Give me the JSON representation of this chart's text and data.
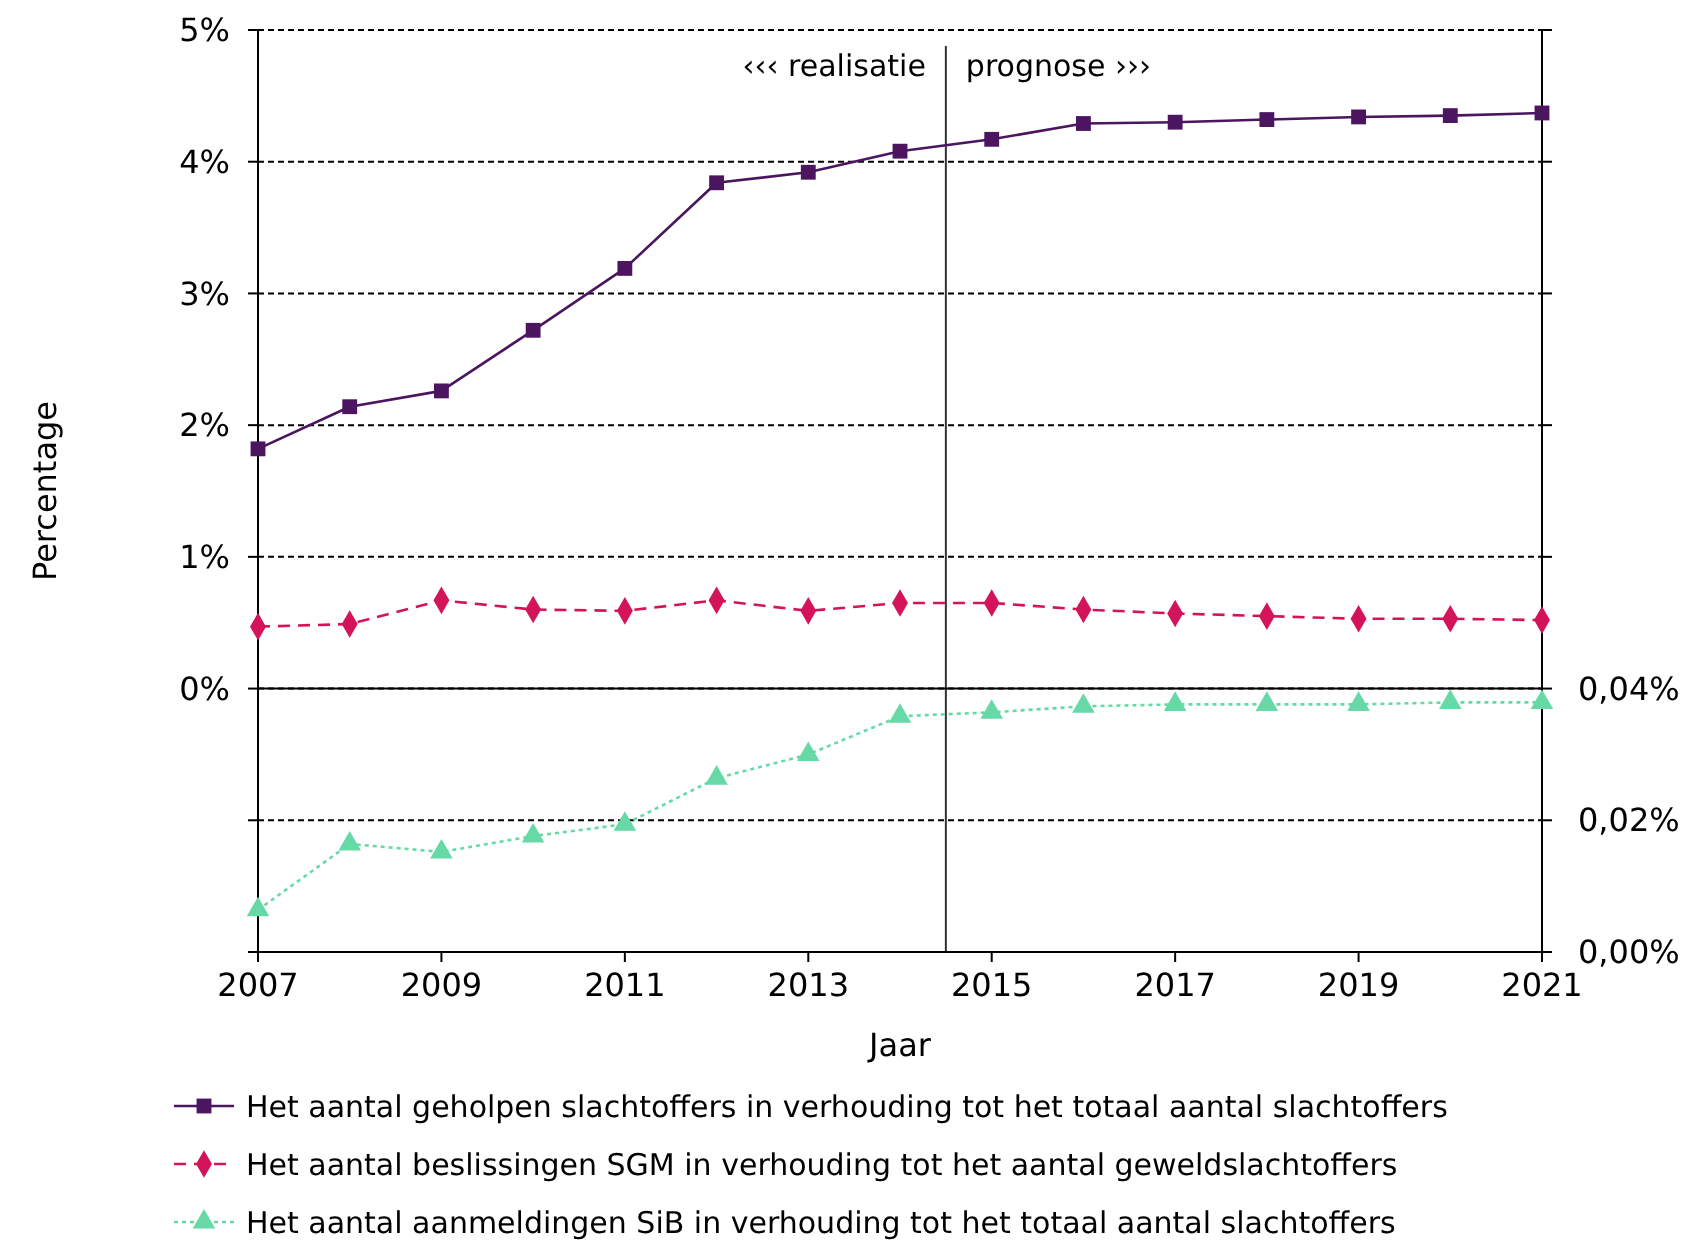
{
  "chart_data": {
    "type": "line",
    "xlabel": "Jaar",
    "ylabel": "Percentage",
    "x": [
      2007,
      2008,
      2009,
      2010,
      2011,
      2012,
      2013,
      2014,
      2015,
      2016,
      2017,
      2018,
      2019,
      2020,
      2021
    ],
    "xlim": [
      2007,
      2021
    ],
    "xticks": [
      2007,
      2009,
      2011,
      2013,
      2015,
      2017,
      2019,
      2021
    ],
    "ylim": [
      -2,
      5
    ],
    "yticks": [
      {
        "value": -2,
        "label": null
      },
      {
        "value": -1,
        "label": null
      },
      {
        "value": 0,
        "label": "0%"
      },
      {
        "value": 1,
        "label": "1%"
      },
      {
        "value": 2,
        "label": "2%"
      },
      {
        "value": 3,
        "label": "3%"
      },
      {
        "value": 4,
        "label": "4%"
      },
      {
        "value": 5,
        "label": "5%"
      }
    ],
    "y2lim": [
      0,
      0.14
    ],
    "y2ticks": [
      {
        "value": 0,
        "label": "0,00%"
      },
      {
        "value": 0.02,
        "label": "0,02%"
      },
      {
        "value": 0.04,
        "label": "0,04%"
      },
      {
        "value": 0.06,
        "label": null
      },
      {
        "value": 0.08,
        "label": null
      },
      {
        "value": 0.1,
        "label": null
      },
      {
        "value": 0.12,
        "label": null
      },
      {
        "value": 0.14,
        "label": null
      }
    ],
    "grid": "y",
    "legend": "bottom",
    "ref_lines": [
      {
        "axis": "x",
        "value": 2014.5,
        "color": "#333333"
      }
    ],
    "annotations": [
      "‹‹‹ realisatie",
      "prognose ›››"
    ],
    "series": [
      {
        "name": "Het aantal geholpen slachtoffers in verhouding tot het totaal aantal slachtoffers",
        "color": "#4b155f",
        "marker": "square",
        "line_style": "solid",
        "values": [
          1.82,
          2.14,
          2.26,
          2.72,
          3.19,
          3.84,
          3.92,
          4.08,
          4.17,
          4.29,
          4.3,
          4.32,
          4.34,
          4.35,
          4.37
        ]
      },
      {
        "name": "Het aantal beslissingen SGM in verhouding tot het aantal geweldslachtoffers",
        "color": "#d4145a",
        "marker": "diamond",
        "line_style": "dashed",
        "values": [
          0.47,
          0.49,
          0.67,
          0.6,
          0.59,
          0.67,
          0.59,
          0.65,
          0.65,
          0.6,
          0.57,
          0.55,
          0.53,
          0.53,
          0.52
        ]
      },
      {
        "name": "Het aantal aanmeldingen SiB in verhouding tot het totaal aantal slachtoffers",
        "color": "#66d9a6",
        "marker": "triangle",
        "line_style": "dotted",
        "axis": "y2",
        "values": [
          0.0064,
          0.0164,
          0.0152,
          0.0176,
          0.0194,
          0.0264,
          0.03,
          0.0358,
          0.0364,
          0.0373,
          0.0376,
          0.0376,
          0.0376,
          0.0379,
          0.0379
        ]
      }
    ]
  }
}
